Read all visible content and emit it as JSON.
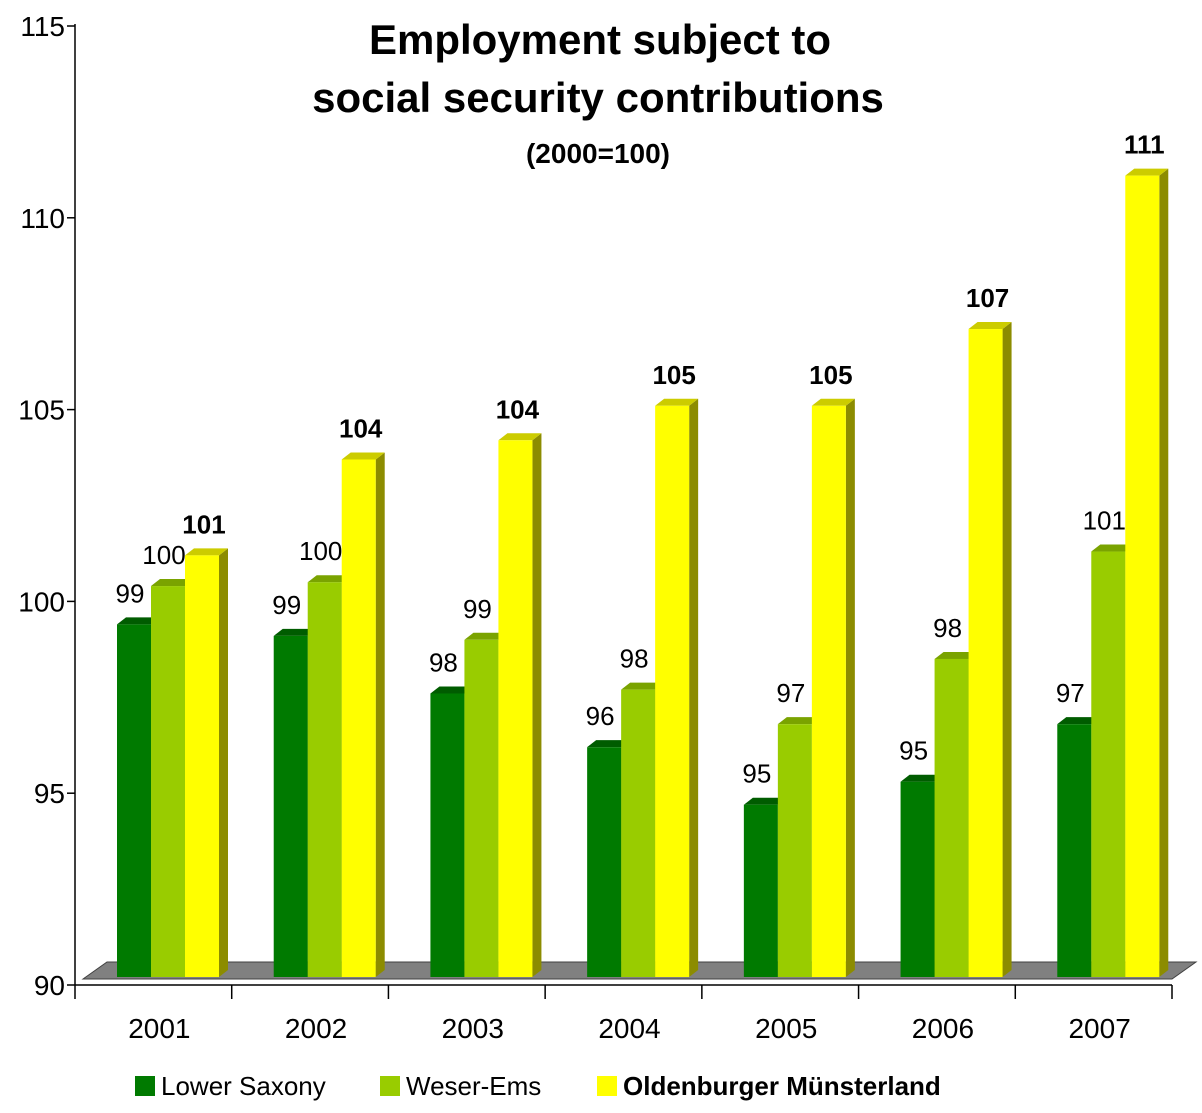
{
  "chart_data": {
    "type": "bar",
    "title": "Employment subject to",
    "title_line2": "social security contributions",
    "subtitle": "(2000=100)",
    "xlabel": "",
    "ylabel": "",
    "categories": [
      "2001",
      "2002",
      "2003",
      "2004",
      "2005",
      "2006",
      "2007"
    ],
    "ylim": [
      90,
      115
    ],
    "yticks": [
      90,
      95,
      100,
      105,
      110,
      115
    ],
    "series": [
      {
        "name": "Lower Saxony",
        "color": "#007a00",
        "side_color": "#004d00",
        "top_color": "#005c00",
        "label_bold": false,
        "values": [
          99.4,
          99.1,
          97.6,
          96.2,
          94.7,
          95.3,
          96.8
        ],
        "labels": [
          "99",
          "99",
          "98",
          "96",
          "95",
          "95",
          "97"
        ]
      },
      {
        "name": "Weser-Ems",
        "color": "#99cc00",
        "side_color": "#668800",
        "top_color": "#7aa300",
        "label_bold": false,
        "values": [
          100.4,
          100.5,
          99.0,
          97.7,
          96.8,
          98.5,
          101.3
        ],
        "labels": [
          "100",
          "100",
          "99",
          "98",
          "97",
          "98",
          "101"
        ]
      },
      {
        "name": "Oldenburger Münsterland",
        "color": "#ffff00",
        "side_color": "#8c8c00",
        "top_color": "#cccc00",
        "label_bold": true,
        "values": [
          101.2,
          103.7,
          104.2,
          105.1,
          105.1,
          107.1,
          111.1
        ],
        "labels": [
          "101",
          "104",
          "104",
          "105",
          "105",
          "107",
          "111"
        ]
      }
    ],
    "floor_color": "#808080",
    "grid": false,
    "legend_position": "bottom"
  }
}
